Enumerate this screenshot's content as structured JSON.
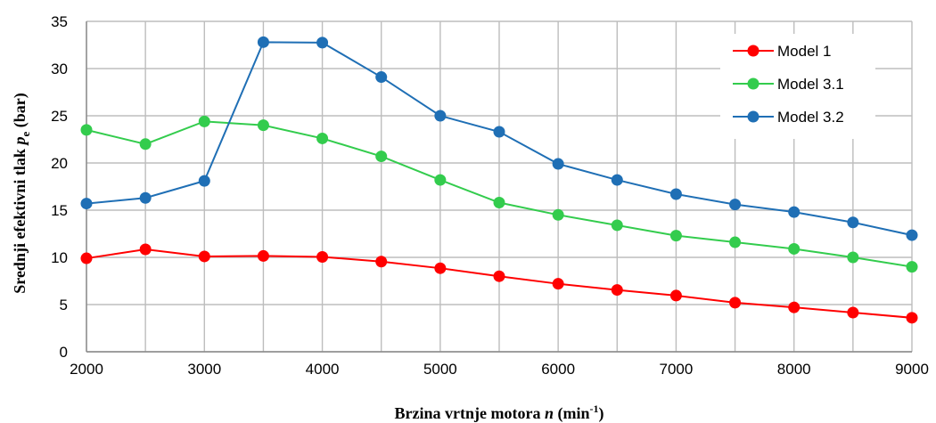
{
  "chart_data": {
    "type": "line",
    "x": [
      2000,
      2500,
      3000,
      3500,
      4000,
      4500,
      5000,
      5500,
      6000,
      6500,
      7000,
      7500,
      8000,
      8500,
      9000
    ],
    "series": [
      {
        "name": "Model 1",
        "color": "#ff0000",
        "values": [
          9.9,
          10.85,
          10.1,
          10.15,
          10.05,
          9.55,
          8.85,
          8.0,
          7.2,
          6.55,
          5.95,
          5.2,
          4.7,
          4.15,
          3.6
        ]
      },
      {
        "name": "Model 3.1",
        "color": "#33cc4d",
        "values": [
          23.5,
          22.0,
          24.4,
          24.0,
          22.6,
          20.7,
          18.2,
          15.8,
          14.5,
          13.4,
          12.3,
          11.6,
          10.9,
          10.0,
          9.0
        ]
      },
      {
        "name": "Model 3.2",
        "color": "#1f6fb5",
        "values": [
          15.7,
          16.3,
          18.1,
          32.8,
          32.75,
          29.1,
          25.0,
          23.3,
          19.9,
          18.2,
          16.7,
          15.6,
          14.8,
          13.7,
          12.35
        ]
      }
    ],
    "xlim": [
      2000,
      9000
    ],
    "ylim": [
      0,
      35
    ],
    "x_ticks": [
      "2000",
      "3000",
      "4000",
      "5000",
      "6000",
      "7000",
      "8000",
      "9000"
    ],
    "y_ticks": [
      "0",
      "5",
      "10",
      "15",
      "20",
      "25",
      "30",
      "35"
    ],
    "x_grid_step": 500,
    "y_grid_step": 5,
    "xlabel": {
      "text": "Brzina vrtnje motora ",
      "var": "n",
      "unit_pre": " (min",
      "sup": "-1",
      "unit_post": ")"
    },
    "ylabel": {
      "text": "Srednji efektivni tlak ",
      "var": "p",
      "sub": "e",
      "unit": " (bar)"
    },
    "legend_position": "top-right",
    "grid": true
  }
}
